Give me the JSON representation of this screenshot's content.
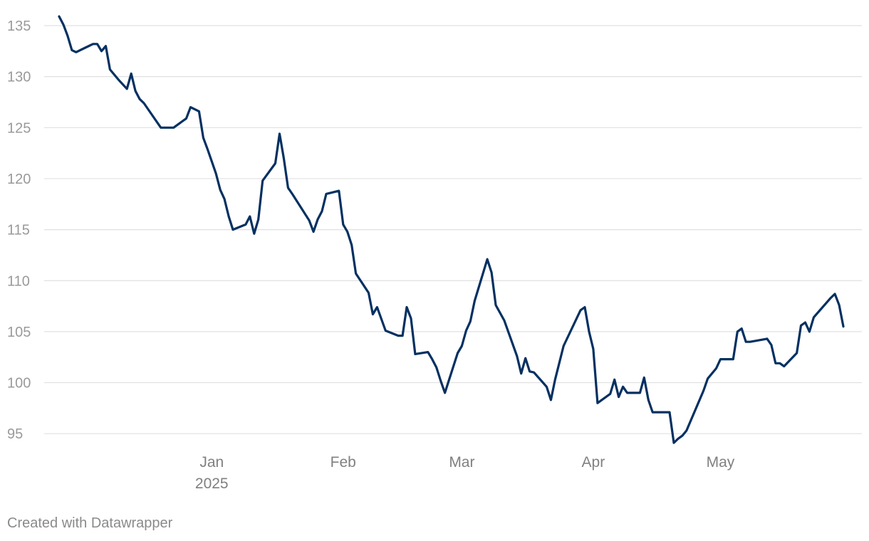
{
  "chart_data": {
    "type": "line",
    "title": "",
    "xlabel": "",
    "ylabel": "",
    "ylim": [
      93,
      136.5
    ],
    "xlim": [
      "2024-11-26",
      "2025-05-31"
    ],
    "y_ticks": [
      95,
      100,
      105,
      110,
      115,
      120,
      125,
      130,
      135
    ],
    "x_ticks": [
      {
        "date": "2025-01-01",
        "label": "Jan",
        "sublabel": "2025"
      },
      {
        "date": "2025-02-01",
        "label": "Feb",
        "sublabel": ""
      },
      {
        "date": "2025-03-01",
        "label": "Mar",
        "sublabel": ""
      },
      {
        "date": "2025-04-01",
        "label": "Apr",
        "sublabel": ""
      },
      {
        "date": "2025-05-01",
        "label": "May",
        "sublabel": ""
      }
    ],
    "grid": true,
    "legend": "none",
    "colors": {
      "series": "#053061",
      "grid": "#e0e0e0",
      "tick_text": "#9a9a9a"
    },
    "series": [
      {
        "points": [
          [
            "2024-11-26",
            135.9
          ],
          [
            "2024-11-27",
            135.1
          ],
          [
            "2024-11-28",
            134.0
          ],
          [
            "2024-11-29",
            132.6
          ],
          [
            "2024-11-30",
            132.4
          ],
          [
            "2024-12-02",
            132.8
          ],
          [
            "2024-12-04",
            133.2
          ],
          [
            "2024-12-05",
            133.2
          ],
          [
            "2024-12-06",
            132.5
          ],
          [
            "2024-12-07",
            133.0
          ],
          [
            "2024-12-08",
            130.7
          ],
          [
            "2024-12-10",
            129.7
          ],
          [
            "2024-12-12",
            128.8
          ],
          [
            "2024-12-13",
            130.3
          ],
          [
            "2024-12-14",
            128.6
          ],
          [
            "2024-12-15",
            127.8
          ],
          [
            "2024-12-16",
            127.4
          ],
          [
            "2024-12-18",
            126.2
          ],
          [
            "2024-12-20",
            125.0
          ],
          [
            "2024-12-23",
            125.0
          ],
          [
            "2024-12-26",
            125.9
          ],
          [
            "2024-12-27",
            127.0
          ],
          [
            "2024-12-29",
            126.6
          ],
          [
            "2024-12-30",
            124.0
          ],
          [
            "2024-12-31",
            122.9
          ],
          [
            "2025-01-02",
            120.5
          ],
          [
            "2025-01-03",
            118.9
          ],
          [
            "2025-01-04",
            118.0
          ],
          [
            "2025-01-05",
            116.3
          ],
          [
            "2025-01-06",
            115.0
          ],
          [
            "2025-01-09",
            115.5
          ],
          [
            "2025-01-10",
            116.3
          ],
          [
            "2025-01-11",
            114.6
          ],
          [
            "2025-01-12",
            116.0
          ],
          [
            "2025-01-13",
            119.8
          ],
          [
            "2025-01-16",
            121.5
          ],
          [
            "2025-01-17",
            124.4
          ],
          [
            "2025-01-18",
            122.0
          ],
          [
            "2025-01-19",
            119.1
          ],
          [
            "2025-01-20",
            118.5
          ],
          [
            "2025-01-24",
            115.9
          ],
          [
            "2025-01-25",
            114.8
          ],
          [
            "2025-01-26",
            116.0
          ],
          [
            "2025-01-27",
            116.8
          ],
          [
            "2025-01-28",
            118.5
          ],
          [
            "2025-01-31",
            118.8
          ],
          [
            "2025-02-01",
            115.5
          ],
          [
            "2025-02-02",
            114.8
          ],
          [
            "2025-02-03",
            113.5
          ],
          [
            "2025-02-04",
            110.7
          ],
          [
            "2025-02-07",
            108.8
          ],
          [
            "2025-02-08",
            106.7
          ],
          [
            "2025-02-09",
            107.4
          ],
          [
            "2025-02-11",
            105.1
          ],
          [
            "2025-02-14",
            104.6
          ],
          [
            "2025-02-15",
            104.6
          ],
          [
            "2025-02-16",
            107.4
          ],
          [
            "2025-02-17",
            106.3
          ],
          [
            "2025-02-18",
            102.8
          ],
          [
            "2025-02-21",
            103.0
          ],
          [
            "2025-02-22",
            102.3
          ],
          [
            "2025-02-23",
            101.5
          ],
          [
            "2025-02-24",
            100.2
          ],
          [
            "2025-02-25",
            99.0
          ],
          [
            "2025-02-28",
            102.9
          ],
          [
            "2025-03-01",
            103.6
          ],
          [
            "2025-03-02",
            105.1
          ],
          [
            "2025-03-03",
            106.0
          ],
          [
            "2025-03-04",
            108.0
          ],
          [
            "2025-03-07",
            112.1
          ],
          [
            "2025-03-08",
            110.8
          ],
          [
            "2025-03-09",
            107.6
          ],
          [
            "2025-03-11",
            106.1
          ],
          [
            "2025-03-14",
            102.6
          ],
          [
            "2025-03-15",
            100.9
          ],
          [
            "2025-03-16",
            102.4
          ],
          [
            "2025-03-17",
            101.1
          ],
          [
            "2025-03-18",
            101.0
          ],
          [
            "2025-03-21",
            99.6
          ],
          [
            "2025-03-22",
            98.3
          ],
          [
            "2025-03-23",
            100.3
          ],
          [
            "2025-03-25",
            103.6
          ],
          [
            "2025-03-29",
            107.1
          ],
          [
            "2025-03-30",
            107.4
          ],
          [
            "2025-03-31",
            105.0
          ],
          [
            "2025-04-01",
            103.3
          ],
          [
            "2025-04-02",
            98.0
          ],
          [
            "2025-04-05",
            98.9
          ],
          [
            "2025-04-06",
            100.3
          ],
          [
            "2025-04-07",
            98.6
          ],
          [
            "2025-04-08",
            99.6
          ],
          [
            "2025-04-09",
            99.0
          ],
          [
            "2025-04-12",
            99.0
          ],
          [
            "2025-04-13",
            100.5
          ],
          [
            "2025-04-14",
            98.3
          ],
          [
            "2025-04-15",
            97.1
          ],
          [
            "2025-04-19",
            97.1
          ],
          [
            "2025-04-20",
            94.1
          ],
          [
            "2025-04-21",
            94.5
          ],
          [
            "2025-04-22",
            94.8
          ],
          [
            "2025-04-23",
            95.3
          ],
          [
            "2025-04-27",
            99.2
          ],
          [
            "2025-04-28",
            100.4
          ],
          [
            "2025-04-30",
            101.4
          ],
          [
            "2025-05-01",
            102.3
          ],
          [
            "2025-05-04",
            102.3
          ],
          [
            "2025-05-05",
            105.0
          ],
          [
            "2025-05-06",
            105.3
          ],
          [
            "2025-05-07",
            104.0
          ],
          [
            "2025-05-08",
            104.0
          ],
          [
            "2025-05-12",
            104.3
          ],
          [
            "2025-05-13",
            103.7
          ],
          [
            "2025-05-14",
            101.9
          ],
          [
            "2025-05-15",
            101.9
          ],
          [
            "2025-05-16",
            101.6
          ],
          [
            "2025-05-19",
            102.9
          ],
          [
            "2025-05-20",
            105.6
          ],
          [
            "2025-05-21",
            105.9
          ],
          [
            "2025-05-22",
            105.0
          ],
          [
            "2025-05-23",
            106.4
          ],
          [
            "2025-05-27",
            108.3
          ],
          [
            "2025-05-28",
            108.7
          ],
          [
            "2025-05-29",
            107.6
          ],
          [
            "2025-05-30",
            105.5
          ]
        ]
      }
    ]
  },
  "footer": {
    "credit": "Created with Datawrapper"
  }
}
